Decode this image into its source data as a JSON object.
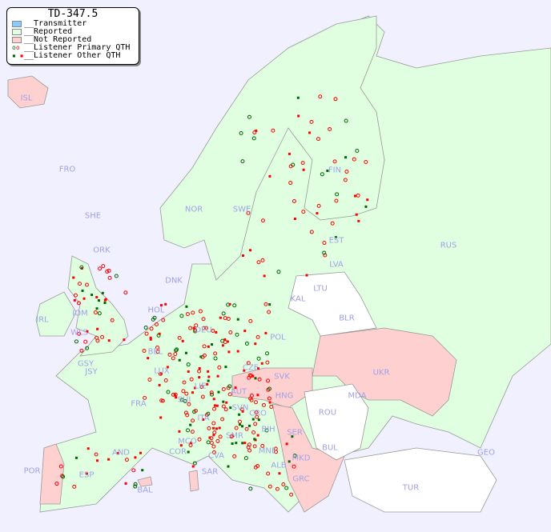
{
  "legend": {
    "title": "TD-347.5",
    "items": [
      {
        "label": "__Transmitter",
        "color": "#88ccff"
      },
      {
        "label": "__Reported",
        "color": "#e0ffe0"
      },
      {
        "label": "__Not Reported",
        "color": "#ffd0d0"
      },
      {
        "label": "__Listener Primary QTH",
        "colors": [
          "#006600",
          "#ff0000"
        ]
      },
      {
        "label": "__Listener Other QTH",
        "colors": [
          "#006600",
          "#ff0000"
        ]
      }
    ]
  },
  "colors": {
    "sea": "#f0f0ff",
    "reported": "#e0ffe0",
    "not_reported": "#ffd0d0",
    "no_data": "#ffffff",
    "label": "#a0a0e8"
  },
  "countries": {
    "reported": [
      "FRO",
      "SHE",
      "ORK",
      "NOR",
      "SWE",
      "FIN",
      "EST",
      "LVA",
      "DNK",
      "IOM",
      "IRL",
      "WLS",
      "HOL",
      "BEL",
      "DEU",
      "POL",
      "CZE",
      "LUX",
      "FRA",
      "SUI",
      "LIE",
      "ITA",
      "SVN",
      "MCO",
      "COR",
      "CVA",
      "ESP",
      "AND",
      "GSY",
      "JSY",
      "RUS",
      "KAL",
      "GEO",
      "MNE",
      "ALB",
      "BIH",
      "CRO",
      "SMR"
    ],
    "not_reported": [
      "ISL",
      "UKR",
      "SVK",
      "AUT",
      "HNG",
      "SER",
      "MKD",
      "GRC",
      "POR",
      "SAR",
      "BAL",
      "MDA"
    ],
    "no_data": [
      "LTU",
      "BLR",
      "ROU",
      "BUL",
      "TUR"
    ]
  },
  "labels": [
    "ISL",
    "FRO",
    "SHE",
    "ORK",
    "NOR",
    "SWE",
    "FIN",
    "EST",
    "LVA",
    "RUS",
    "DNK",
    "LTU",
    "KAL",
    "BLR",
    "IRL",
    "IOM",
    "WLS",
    "HOL",
    "BEL",
    "DEU",
    "POL",
    "UKR",
    "GSY",
    "JSY",
    "LUX",
    "CZE",
    "SVK",
    "MDA",
    "FRA",
    "LIE",
    "AUT",
    "HNG",
    "SUI",
    "SVN",
    "CRO",
    "ROU",
    "ITA",
    "BIH",
    "SER",
    "BUL",
    "MCO",
    "COR",
    "SMR",
    "CVA",
    "MNE",
    "AND",
    "ALB",
    "MKD",
    "GEO",
    "POR",
    "ESP",
    "SAR",
    "GRC",
    "TUR",
    "BAL"
  ]
}
